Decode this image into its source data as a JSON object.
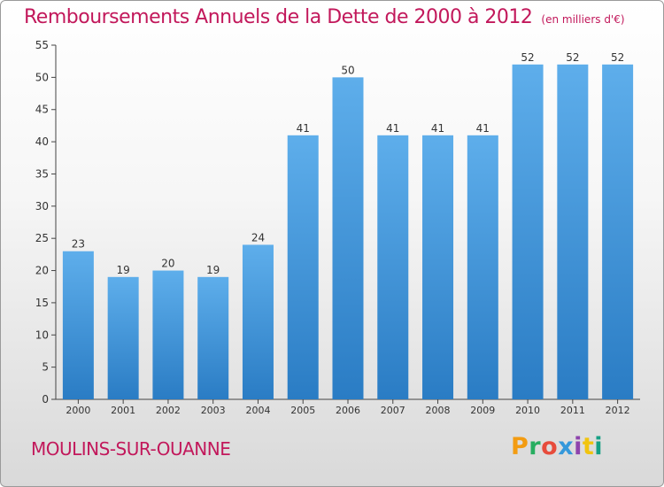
{
  "header": {
    "title": "Remboursements Annuels de la Dette de 2000 à 2012",
    "unit_note": "(en milliers d'€)"
  },
  "footer": {
    "commune": "MOULINS-SUR-OUANNE",
    "logo_text": "Proxiti"
  },
  "colors": {
    "title": "#c2185b",
    "bar_top": "#5eaeeb",
    "bar_bottom": "#2a7cc4",
    "axis": "#444444"
  },
  "chart_data": {
    "type": "bar",
    "title": "Remboursements Annuels de la Dette de 2000 à 2012",
    "subtitle": "(en milliers d'€)",
    "xlabel": "",
    "ylabel": "",
    "categories": [
      "2000",
      "2001",
      "2002",
      "2003",
      "2004",
      "2005",
      "2006",
      "2007",
      "2008",
      "2009",
      "2010",
      "2011",
      "2012"
    ],
    "values": [
      23,
      19,
      20,
      19,
      24,
      41,
      50,
      41,
      41,
      41,
      52,
      52,
      52
    ],
    "ylim": [
      0,
      55
    ],
    "yticks": [
      0,
      5,
      10,
      15,
      20,
      25,
      30,
      35,
      40,
      45,
      50,
      55
    ],
    "grid": false,
    "legend": "none"
  }
}
